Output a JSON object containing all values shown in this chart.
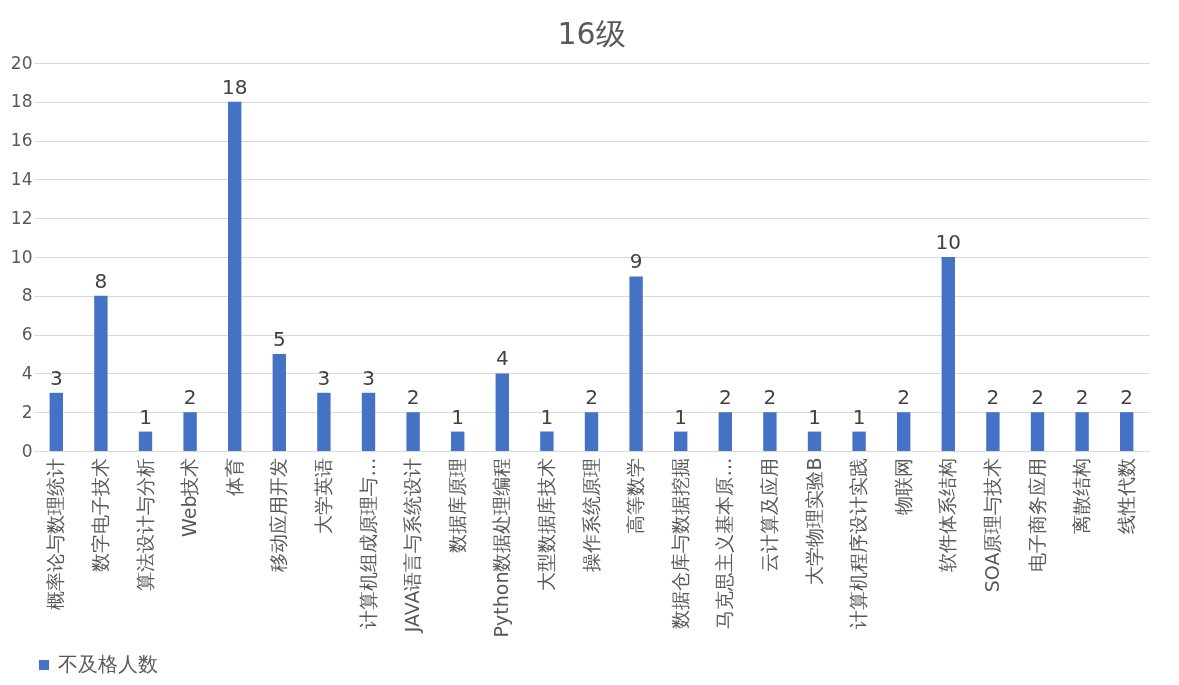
{
  "chart_data": {
    "type": "bar",
    "title": "16级",
    "categories": [
      "概率论与数理统计",
      "数字电子技术",
      "算法设计与分析",
      "Web技术",
      "体育",
      "移动应用开发",
      "大学英语",
      "计算机组成原理与…",
      "JAVA语言与系统设计",
      "数据库原理",
      "Python数据处理编程",
      "大型数据库技术",
      "操作系统原理",
      "高等数学",
      "数据仓库与数据挖掘",
      "马克思主义基本原…",
      "云计算及应用",
      "大学物理实验B",
      "计算机程序设计实践",
      "物联网",
      "软件体系结构",
      "SOA原理与技术",
      "电子商务应用",
      "离散结构",
      "线性代数"
    ],
    "series": [
      {
        "name": "不及格人数",
        "color": "#4472c4",
        "values": [
          3,
          8,
          1,
          2,
          18,
          5,
          3,
          3,
          2,
          1,
          4,
          1,
          2,
          9,
          1,
          2,
          2,
          1,
          1,
          2,
          10,
          2,
          2,
          2,
          2
        ]
      }
    ],
    "ylim": [
      0,
      20
    ],
    "yticks": [
      0,
      2,
      4,
      6,
      8,
      10,
      12,
      14,
      16,
      18,
      20
    ],
    "grid": "y",
    "legend": "bottom",
    "data_labels": true
  }
}
